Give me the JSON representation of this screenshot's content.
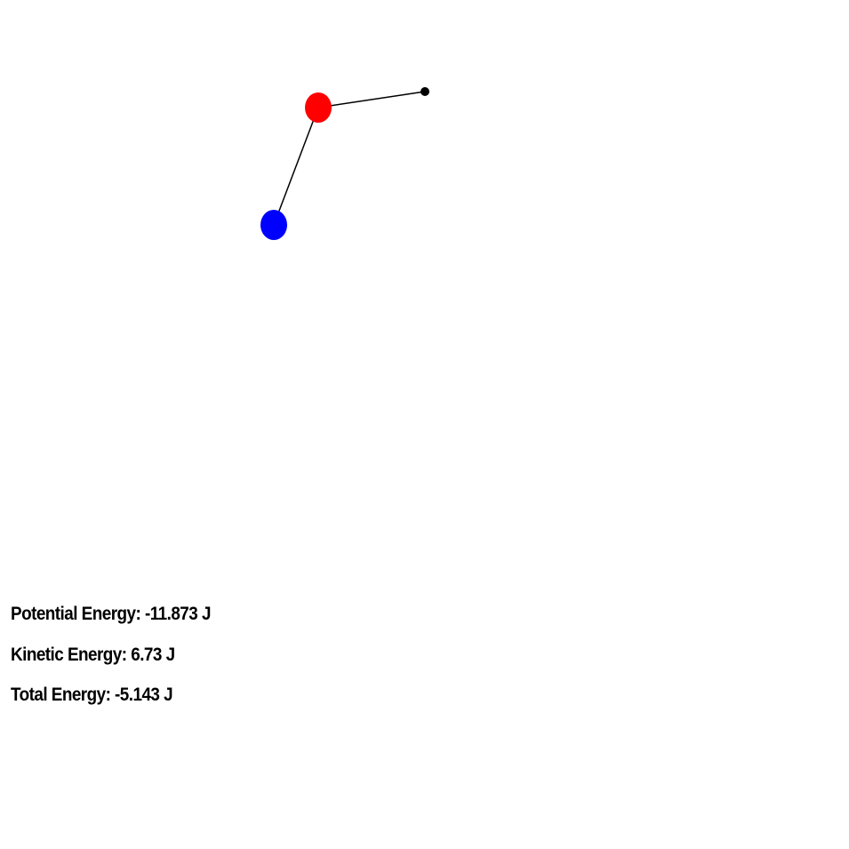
{
  "simulation": {
    "pivot_color": "#000000",
    "rod_color": "#000000",
    "bob1_color": "#ff0000",
    "bob2_color": "#0000ff",
    "background": "#ffffff"
  },
  "energy": {
    "potential": "Potential Energy: -11.873 J",
    "kinetic": "Kinetic Energy: 6.73 J",
    "total": "Total Energy: -5.143 J"
  }
}
